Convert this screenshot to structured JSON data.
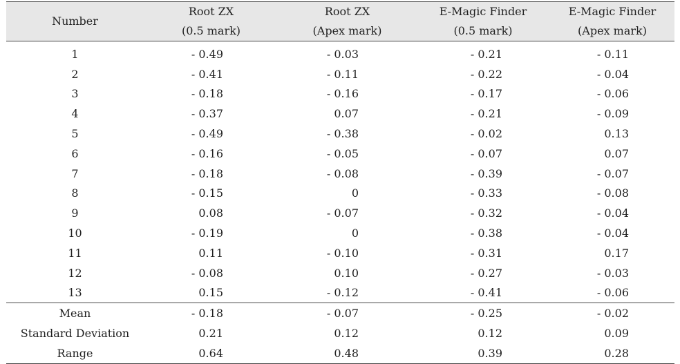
{
  "headers": [
    [
      "Number"
    ],
    [
      "Root ZX",
      "(0.5 mark)"
    ],
    [
      "Root ZX",
      "(Apex mark)"
    ],
    [
      "E-Magic Finder",
      "(0.5 mark)"
    ],
    [
      "E-Magic Finder",
      "(Apex mark)"
    ]
  ],
  "rows": [
    [
      "1",
      "- 0.49",
      "- 0.03",
      "- 0.21",
      "- 0.11"
    ],
    [
      "2",
      "- 0.41",
      "- 0.11",
      "- 0.22",
      "- 0.04"
    ],
    [
      "3",
      "- 0.18",
      "- 0.16",
      "- 0.17",
      "- 0.06"
    ],
    [
      "4",
      "- 0.37",
      "0.07",
      "- 0.21",
      "- 0.09"
    ],
    [
      "5",
      "- 0.49",
      "- 0.38",
      "- 0.02",
      "0.13"
    ],
    [
      "6",
      "- 0.16",
      "- 0.05",
      "- 0.07",
      "0.07"
    ],
    [
      "7",
      "- 0.18",
      "- 0.08",
      "- 0.39",
      "- 0.07"
    ],
    [
      "8",
      "- 0.15",
      "0",
      "- 0.33",
      "- 0.08"
    ],
    [
      "9",
      "0.08",
      "- 0.07",
      "- 0.32",
      "- 0.04"
    ],
    [
      "10",
      "- 0.19",
      "0",
      "- 0.38",
      "- 0.04"
    ],
    [
      "11",
      "0.11",
      "- 0.10",
      "- 0.31",
      "0.17"
    ],
    [
      "12",
      "- 0.08",
      "0.10",
      "- 0.27",
      "- 0.03"
    ],
    [
      "13",
      "0.15",
      "- 0.12",
      "- 0.41",
      "- 0.06"
    ]
  ],
  "summary": [
    [
      "Mean",
      "- 0.18",
      "- 0.07",
      "- 0.25",
      "- 0.02"
    ],
    [
      "Standard Deviation",
      "0.21",
      "0.12",
      "0.12",
      "0.09"
    ],
    [
      "Range",
      "0.64",
      "0.48",
      "0.39",
      "0.28"
    ]
  ]
}
